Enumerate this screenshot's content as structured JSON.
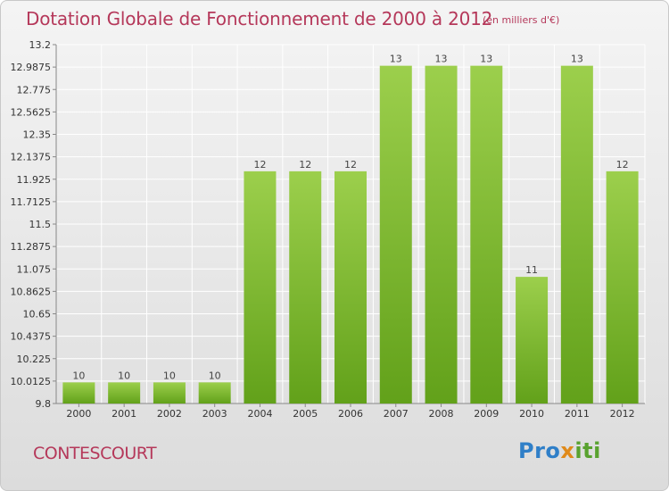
{
  "title": "Dotation Globale de Fonctionnement de 2000 à 2012",
  "subtitle": "(en milliers d'€)",
  "commune": "CONTESCOURT",
  "logo": {
    "part1": "Pro",
    "part2": "x",
    "part3": "iti"
  },
  "chart_data": {
    "type": "bar",
    "categories": [
      "2000",
      "2001",
      "2002",
      "2003",
      "2004",
      "2005",
      "2006",
      "2007",
      "2008",
      "2009",
      "2010",
      "2011",
      "2012"
    ],
    "values": [
      10,
      10,
      10,
      10,
      12,
      12,
      12,
      13,
      13,
      13,
      11,
      13,
      12
    ],
    "ylim": [
      9.8,
      13.2
    ],
    "yticks": [
      "13.2",
      "12.9875",
      "12.775",
      "12.5625",
      "12.35",
      "12.1375",
      "11.925",
      "11.7125",
      "11.5",
      "11.2875",
      "11.075",
      "10.8625",
      "10.65",
      "10.4375",
      "10.225",
      "10.0125",
      "9.8"
    ],
    "grid": true,
    "colors": {
      "bar_top": "#9ccf4c",
      "bar_bottom": "#62a11a",
      "grid": "#ffffff"
    }
  }
}
